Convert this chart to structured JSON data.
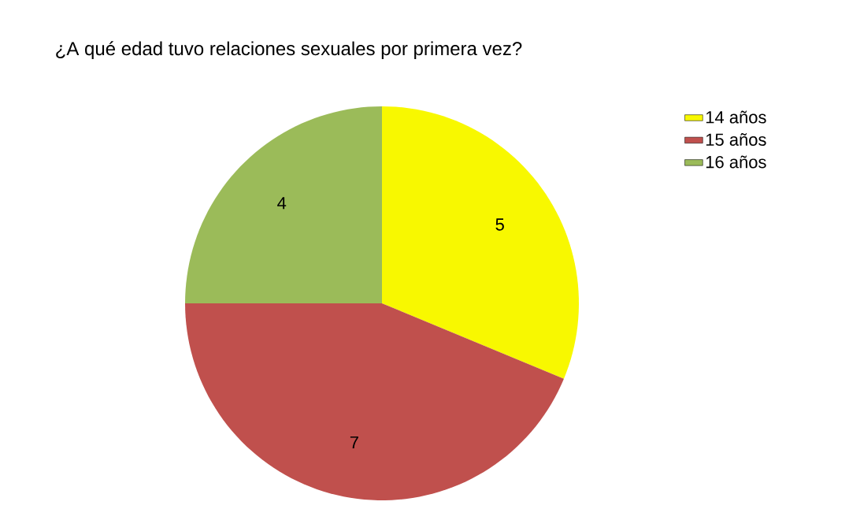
{
  "chart_data": {
    "type": "pie",
    "title": "¿A qué edad tuvo relaciones sexuales por primera vez?",
    "categories": [
      "14 años",
      "15 años",
      "16 años"
    ],
    "values": [
      5,
      7,
      4
    ],
    "colors": [
      "#f8f800",
      "#c0504d",
      "#9bbb59"
    ],
    "data_labels": true,
    "legend": "right"
  }
}
